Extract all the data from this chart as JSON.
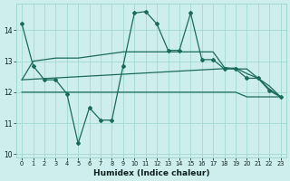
{
  "x": [
    0,
    1,
    2,
    3,
    4,
    5,
    6,
    7,
    8,
    9,
    10,
    11,
    12,
    13,
    14,
    15,
    16,
    17,
    18,
    19,
    20,
    21,
    22,
    23
  ],
  "main_line": [
    14.2,
    12.85,
    12.4,
    12.4,
    11.95,
    10.35,
    11.5,
    11.1,
    11.1,
    12.85,
    14.55,
    14.6,
    14.2,
    13.35,
    13.35,
    14.55,
    13.05,
    13.05,
    12.75,
    12.75,
    12.45,
    12.45,
    12.05,
    11.85
  ],
  "flat_line": [
    12.0,
    12.0,
    12.0,
    12.0,
    12.0,
    12.0,
    12.0,
    12.0,
    12.0,
    12.0,
    12.0,
    12.0,
    12.0,
    12.0,
    12.0,
    12.0,
    12.0,
    12.0,
    12.0,
    12.0,
    11.85,
    11.85,
    11.85,
    11.85
  ],
  "mid_line": [
    12.4,
    12.42,
    12.44,
    12.46,
    12.48,
    12.5,
    12.52,
    12.54,
    12.56,
    12.58,
    12.6,
    12.62,
    12.64,
    12.66,
    12.68,
    12.7,
    12.72,
    12.74,
    12.76,
    12.78,
    12.6,
    12.45,
    12.2,
    11.85
  ],
  "upper_line": [
    12.4,
    13.0,
    13.05,
    13.1,
    13.1,
    13.1,
    13.15,
    13.2,
    13.25,
    13.3,
    13.3,
    13.3,
    13.3,
    13.3,
    13.3,
    13.3,
    13.3,
    13.3,
    12.8,
    12.75,
    12.75,
    12.45,
    12.1,
    11.85
  ],
  "color": "#1a6b5a",
  "bg_color": "#ceeeed",
  "grid_color": "#9ad4ce",
  "xlabel": "Humidex (Indice chaleur)",
  "ylim": [
    9.9,
    14.85
  ],
  "xlim": [
    -0.5,
    23.5
  ],
  "yticks": [
    10,
    11,
    12,
    13,
    14
  ],
  "xtick_labels": [
    "0",
    "1",
    "2",
    "3",
    "4",
    "5",
    "6",
    "7",
    "8",
    "9",
    "10",
    "11",
    "12",
    "13",
    "14",
    "15",
    "16",
    "17",
    "18",
    "19",
    "20",
    "21",
    "22",
    "23"
  ]
}
